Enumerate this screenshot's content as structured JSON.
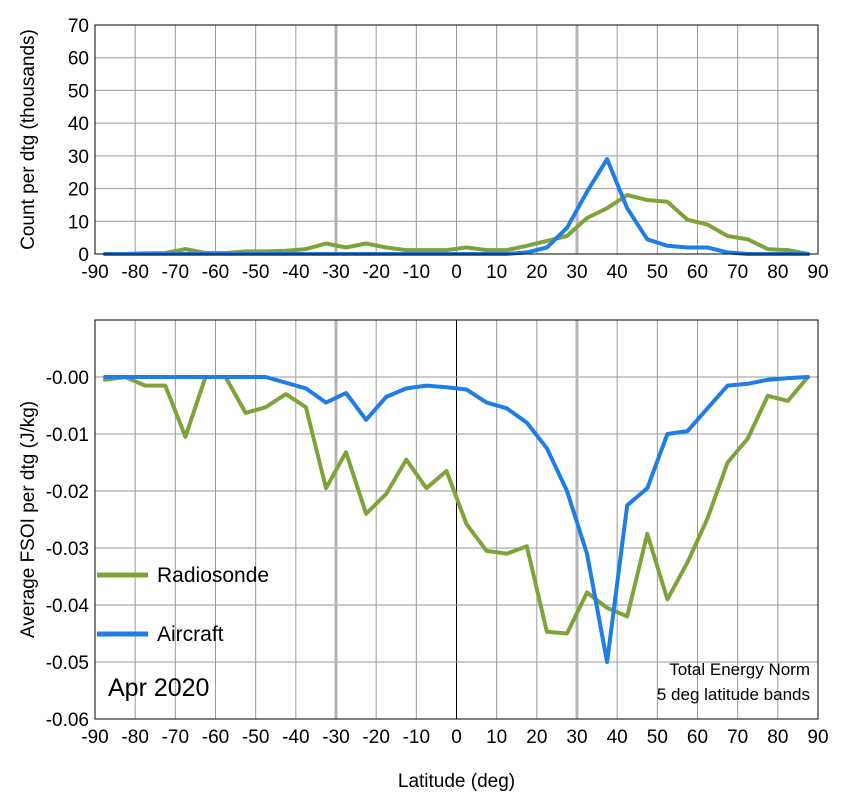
{
  "chart_data": [
    {
      "type": "line",
      "ylabel": "Count per dtg (thousands)",
      "xlim": [
        -90,
        90
      ],
      "ylim": [
        0,
        70
      ],
      "xticks": [
        -90,
        -80,
        -70,
        -60,
        -50,
        -40,
        -30,
        -20,
        -10,
        0,
        10,
        20,
        30,
        40,
        50,
        60,
        70,
        80,
        90
      ],
      "yticks": [
        0,
        10,
        20,
        30,
        40,
        50,
        60,
        70
      ],
      "grid": true,
      "x": [
        -87.5,
        -82.5,
        -77.5,
        -72.5,
        -67.5,
        -62.5,
        -57.5,
        -52.5,
        -47.5,
        -42.5,
        -37.5,
        -32.5,
        -27.5,
        -22.5,
        -17.5,
        -12.5,
        -7.5,
        -2.5,
        2.5,
        7.5,
        12.5,
        17.5,
        22.5,
        27.5,
        32.5,
        37.5,
        42.5,
        47.5,
        52.5,
        57.5,
        62.5,
        67.5,
        72.5,
        77.5,
        82.5,
        87.5
      ],
      "series": [
        {
          "name": "Radiosonde",
          "color": "#7fa33a",
          "values": [
            0,
            0,
            0.2,
            0.3,
            1.5,
            0.3,
            0.3,
            0.8,
            0.8,
            1,
            1.5,
            3.2,
            2,
            3.2,
            2,
            1.2,
            1.2,
            1.2,
            2,
            1.2,
            1.2,
            2.5,
            4,
            5.5,
            11,
            14,
            18,
            16.5,
            16,
            10.5,
            9,
            5.5,
            4.5,
            1.5,
            1.2,
            0
          ]
        },
        {
          "name": "Aircraft",
          "color": "#1e7ee6",
          "values": [
            0,
            0,
            0,
            0,
            0,
            0,
            0,
            0,
            0,
            0,
            0,
            0,
            0,
            0,
            0,
            0,
            0,
            0,
            0,
            0,
            0,
            0.5,
            2,
            8,
            19,
            29,
            14,
            4.5,
            2.5,
            2,
            2,
            0.5,
            0,
            0,
            0,
            0
          ]
        }
      ]
    },
    {
      "type": "line",
      "xlabel": "Latitude (deg)",
      "ylabel": "Average FSOI per dtg (J/kg)",
      "xlim": [
        -90,
        90
      ],
      "ylim": [
        -0.06,
        0.01
      ],
      "xticks": [
        -90,
        -80,
        -70,
        -60,
        -50,
        -40,
        -30,
        -20,
        -10,
        0,
        10,
        20,
        30,
        40,
        50,
        60,
        70,
        80,
        90
      ],
      "yticks": [
        "-0.00",
        "-0.01",
        "-0.02",
        "-0.03",
        "-0.04",
        "-0.05",
        "-0.06"
      ],
      "grid": true,
      "legend_position": "bottom-left",
      "x": [
        -87.5,
        -82.5,
        -77.5,
        -72.5,
        -67.5,
        -62.5,
        -57.5,
        -52.5,
        -47.5,
        -42.5,
        -37.5,
        -32.5,
        -27.5,
        -22.5,
        -17.5,
        -12.5,
        -7.5,
        -2.5,
        2.5,
        7.5,
        12.5,
        17.5,
        22.5,
        27.5,
        32.5,
        37.5,
        42.5,
        47.5,
        52.5,
        57.5,
        62.5,
        67.5,
        72.5,
        77.5,
        82.5,
        87.5
      ],
      "series": [
        {
          "name": "Radiosonde",
          "color": "#7fa33a",
          "values": [
            -0.0005,
            0,
            -0.0015,
            -0.0015,
            -0.0105,
            0,
            0,
            -0.0063,
            -0.0053,
            -0.003,
            -0.0053,
            -0.0195,
            -0.0132,
            -0.024,
            -0.0205,
            -0.0145,
            -0.0195,
            -0.0165,
            -0.0258,
            -0.0305,
            -0.031,
            -0.0297,
            -0.0447,
            -0.045,
            -0.0378,
            -0.0405,
            -0.042,
            -0.0275,
            -0.039,
            -0.0325,
            -0.0248,
            -0.015,
            -0.0108,
            -0.0033,
            -0.0042,
            0
          ]
        },
        {
          "name": "Aircraft",
          "color": "#1e7ee6",
          "values": [
            0,
            0,
            0,
            0,
            0,
            0,
            0,
            0,
            0,
            -0.001,
            -0.002,
            -0.0045,
            -0.0028,
            -0.0075,
            -0.0035,
            -0.002,
            -0.0015,
            -0.0018,
            -0.0022,
            -0.0045,
            -0.0055,
            -0.008,
            -0.0125,
            -0.02,
            -0.031,
            -0.05,
            -0.0225,
            -0.0195,
            -0.01,
            -0.0095,
            -0.0055,
            -0.0015,
            -0.0012,
            -0.0005,
            -0.0002,
            0
          ]
        }
      ],
      "annotations": [
        "Apr 2020",
        "Total Energy Norm",
        "5 deg latitude bands"
      ]
    }
  ],
  "highlight_lines_x": [
    -30,
    30
  ]
}
